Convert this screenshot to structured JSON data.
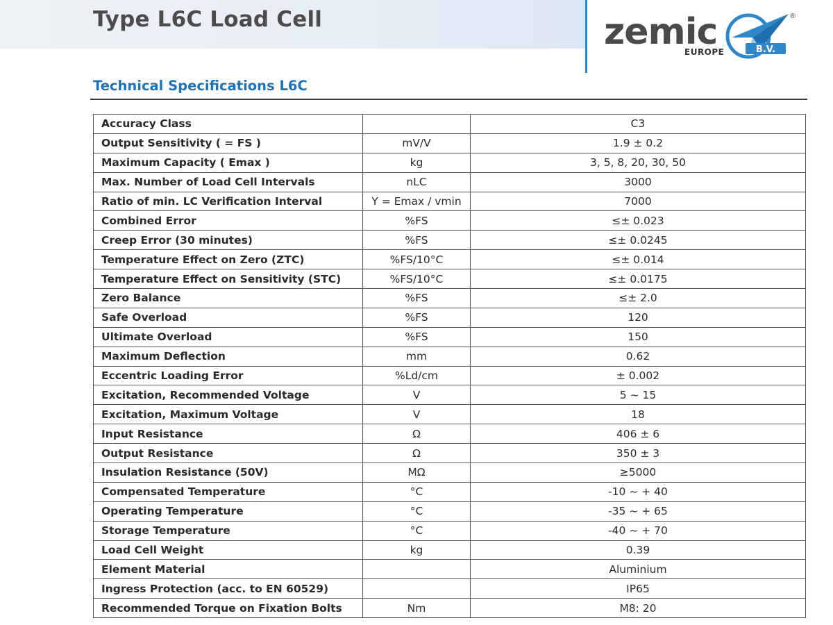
{
  "header": {
    "title": "Type L6C Load Cell",
    "logo_text": "zemic",
    "logo_subtext": "EUROPE",
    "logo_badge": "B.V.",
    "logo_registered": "®",
    "accent_color": "#1e8ad6"
  },
  "section": {
    "title": "Technical Specifications L6C"
  },
  "specs": [
    {
      "param": "Accuracy Class",
      "unit": "",
      "value": "C3"
    },
    {
      "param": "Output Sensitivity ( = FS )",
      "unit": "mV/V",
      "value": "1.9 ± 0.2"
    },
    {
      "param": "Maximum Capacity ( Emax )",
      "unit": "kg",
      "value": "3, 5, 8, 20, 30, 50"
    },
    {
      "param": "Max. Number of Load Cell Intervals",
      "unit": "nLC",
      "value": "3000"
    },
    {
      "param": "Ratio of min. LC Verification Interval",
      "unit": "Y = Emax / vmin",
      "value": "7000"
    },
    {
      "param": "Combined Error",
      "unit": "%FS",
      "value": "≤± 0.023"
    },
    {
      "param": "Creep Error (30 minutes)",
      "unit": "%FS",
      "value": "≤± 0.0245"
    },
    {
      "param": "Temperature Effect on Zero (ZTC)",
      "unit": "%FS/10°C",
      "value": "≤± 0.014"
    },
    {
      "param": "Temperature Effect on Sensitivity (STC)",
      "unit": "%FS/10°C",
      "value": "≤± 0.0175"
    },
    {
      "param": "Zero Balance",
      "unit": "%FS",
      "value": "≤± 2.0"
    },
    {
      "param": "Safe Overload",
      "unit": "%FS",
      "value": "120"
    },
    {
      "param": "Ultimate Overload",
      "unit": "%FS",
      "value": "150"
    },
    {
      "param": "Maximum Deflection",
      "unit": "mm",
      "value": "0.62"
    },
    {
      "param": "Eccentric Loading Error",
      "unit": "%Ld/cm",
      "value": "± 0.002"
    },
    {
      "param": "Excitation, Recommended Voltage",
      "unit": "V",
      "value": "5 ~ 15"
    },
    {
      "param": "Excitation, Maximum Voltage",
      "unit": "V",
      "value": "18"
    },
    {
      "param": "Input Resistance",
      "unit": "Ω",
      "value": "406 ± 6"
    },
    {
      "param": "Output Resistance",
      "unit": "Ω",
      "value": "350 ± 3"
    },
    {
      "param": "Insulation Resistance (50V)",
      "unit": "MΩ",
      "value": "≥5000"
    },
    {
      "param": "Compensated Temperature",
      "unit": "°C",
      "value": "-10 ~ + 40"
    },
    {
      "param": "Operating Temperature",
      "unit": "°C",
      "value": "-35 ~ + 65"
    },
    {
      "param": "Storage Temperature",
      "unit": "°C",
      "value": "-40 ~ + 70"
    },
    {
      "param": "Load Cell Weight",
      "unit": "kg",
      "value": "0.39"
    },
    {
      "param": "Element Material",
      "unit": "",
      "value": "Aluminium"
    },
    {
      "param": "Ingress Protection (acc. to EN 60529)",
      "unit": "",
      "value": "IP65"
    },
    {
      "param": "Recommended Torque on Fixation Bolts",
      "unit": "Nm",
      "value": "M8: 20"
    }
  ]
}
